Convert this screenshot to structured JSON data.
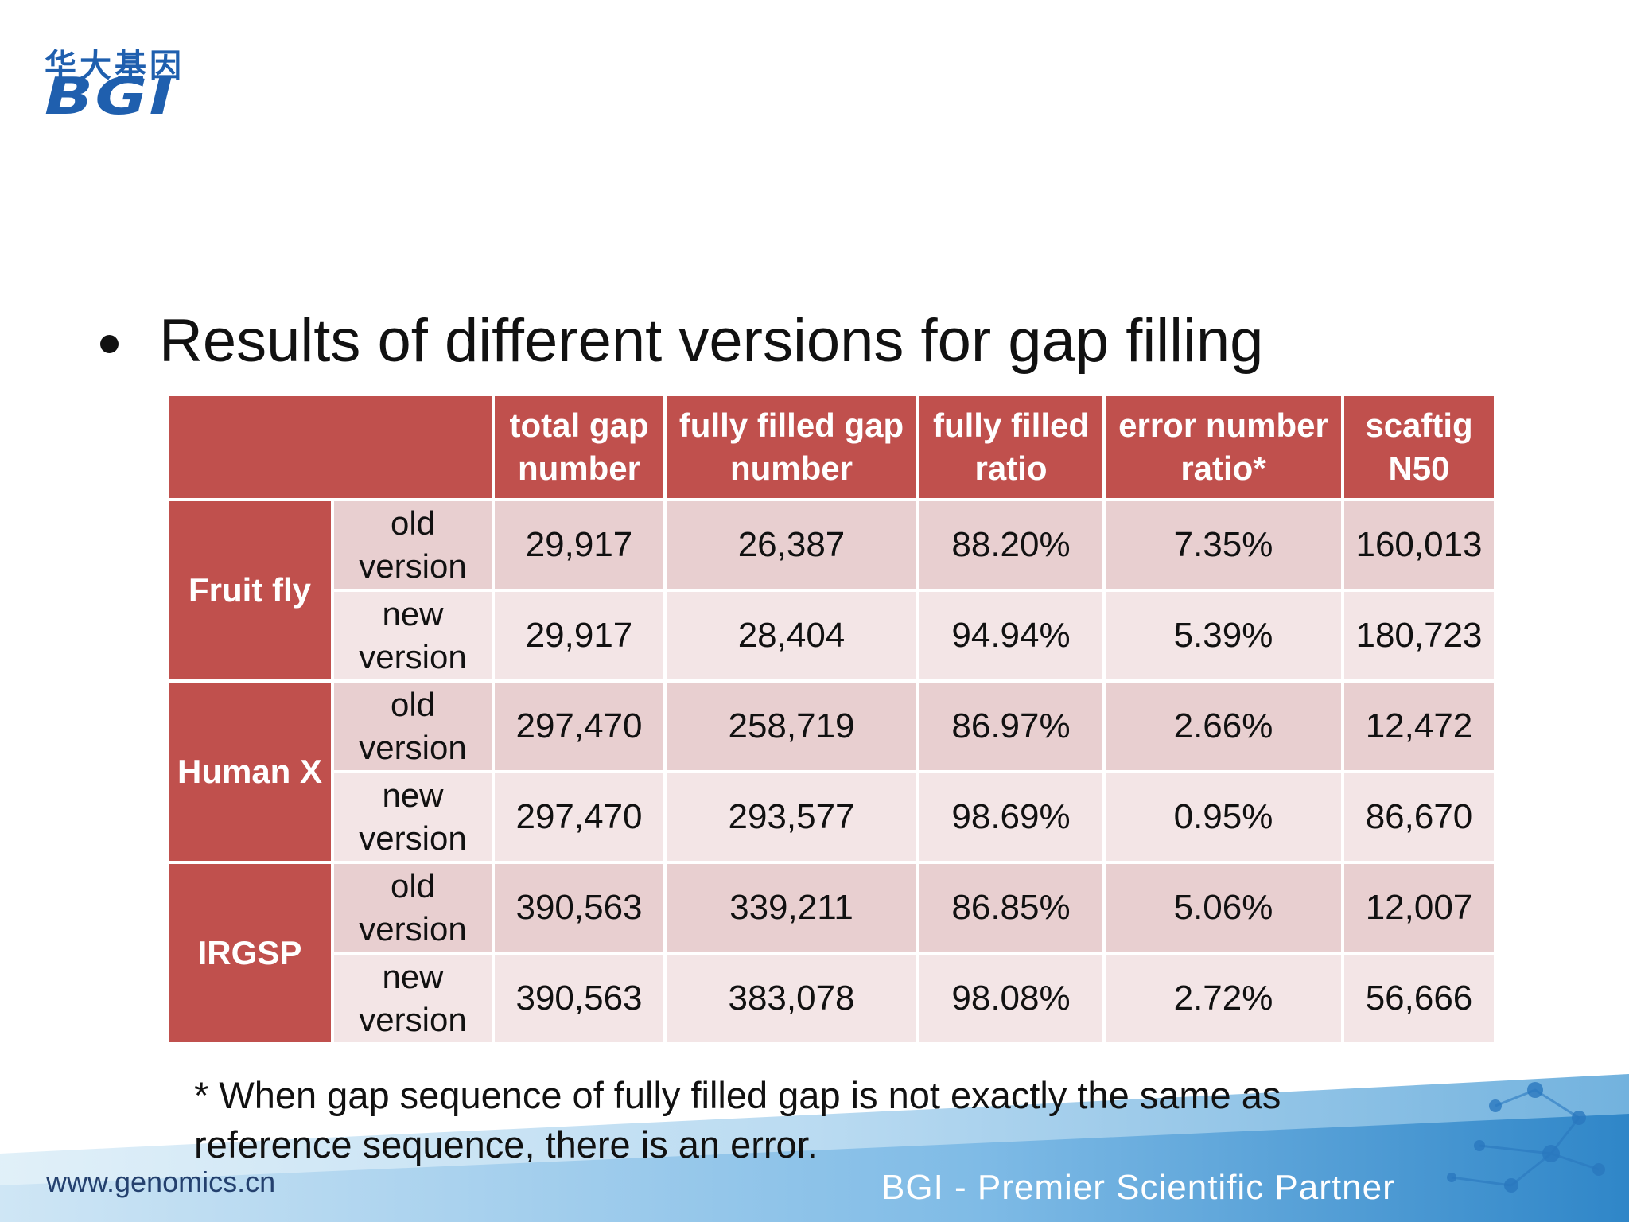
{
  "logo": {
    "chinese": "华大基因",
    "english": "BGI"
  },
  "heading": "Results of different versions for gap filling",
  "table": {
    "headers": [
      "total gap number",
      "fully filled gap number",
      "fully filled ratio",
      "error number ratio*",
      "scaftig N50"
    ],
    "groups": [
      {
        "name": "Fruit fly",
        "rows": [
          {
            "version": "old version",
            "values": [
              "29,917",
              "26,387",
              "88.20%",
              "7.35%",
              "160,013"
            ]
          },
          {
            "version": "new version",
            "values": [
              "29,917",
              "28,404",
              "94.94%",
              "5.39%",
              "180,723"
            ]
          }
        ]
      },
      {
        "name": "Human X",
        "rows": [
          {
            "version": "old version",
            "values": [
              "297,470",
              "258,719",
              "86.97%",
              "2.66%",
              "12,472"
            ]
          },
          {
            "version": "new version",
            "values": [
              "297,470",
              "293,577",
              "98.69%",
              "0.95%",
              "86,670"
            ]
          }
        ]
      },
      {
        "name": "IRGSP",
        "rows": [
          {
            "version": "old version",
            "values": [
              "390,563",
              "339,211",
              "86.85%",
              "5.06%",
              "12,007"
            ]
          },
          {
            "version": "new version",
            "values": [
              "390,563",
              "383,078",
              "98.08%",
              "2.72%",
              "56,666"
            ]
          }
        ]
      }
    ]
  },
  "footnote": "* When gap sequence of fully filled gap is not exactly the same as reference sequence, there is an error.",
  "footer": {
    "website": "www.genomics.cn",
    "tagline": "BGI - Premier Scientific Partner"
  },
  "colors": {
    "header_red": "#c0504d",
    "row_dark": "#e8cfd0",
    "row_light": "#f3e5e6",
    "logo_blue": "#1f5fae"
  }
}
